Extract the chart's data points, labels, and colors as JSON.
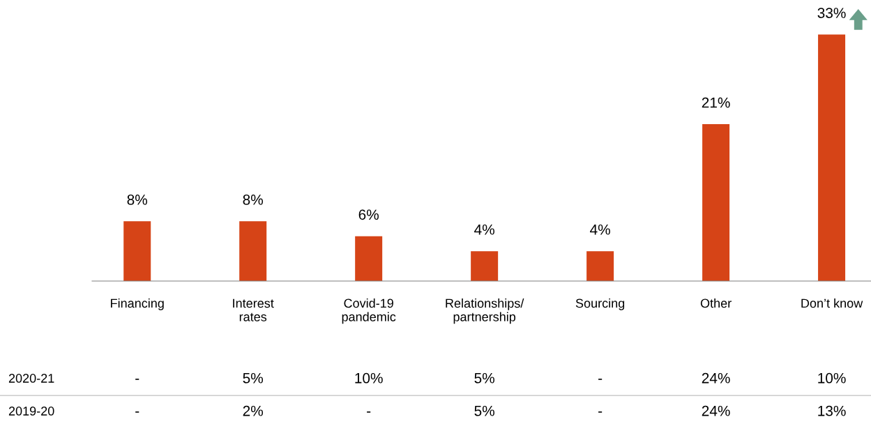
{
  "chart_data": {
    "type": "bar",
    "categories": [
      "Financing",
      "Interest\nrates",
      "Covid-19\npandemic",
      "Relationships/\npartnership",
      "Sourcing",
      "Other",
      "Don’t know"
    ],
    "values": [
      8,
      8,
      6,
      4,
      4,
      21,
      33
    ],
    "value_labels": [
      "8%",
      "8%",
      "6%",
      "4%",
      "4%",
      "21%",
      "33%"
    ],
    "color": "#d64417",
    "tick_labels": "x",
    "grid": false,
    "legend": false,
    "annotations": [
      "2020-21",
      "-",
      "5%",
      "10%",
      "5%",
      "-",
      "24%",
      "10%",
      "2019-20",
      "-",
      "2%",
      "-",
      "5%",
      "-",
      "24%",
      "13%"
    ]
  }
}
